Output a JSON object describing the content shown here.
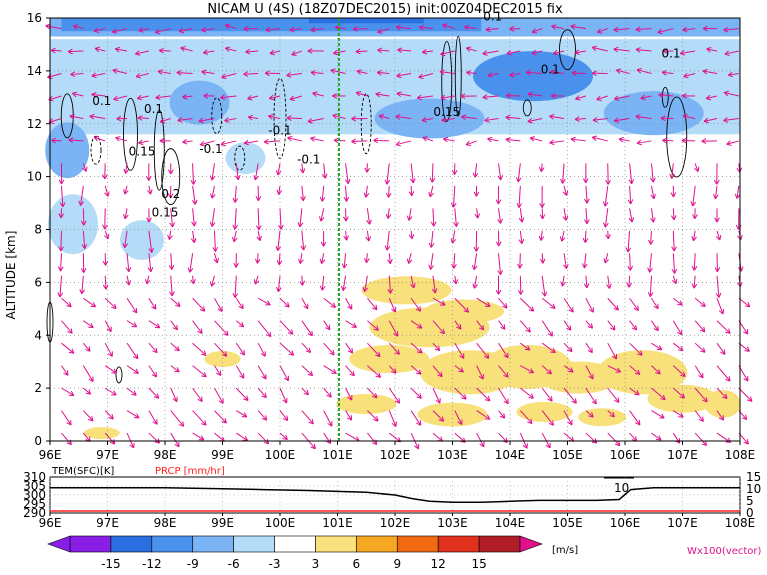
{
  "title": "NICAM U (4S) (18Z07DEC2015) init:00Z04DEC2015 fix",
  "colors": {
    "vector": "#e0108c",
    "shade_neg": [
      "#8a1ee6",
      "#2a6fe0",
      "#4a91ee",
      "#7ab4f5",
      "#b4dcf8"
    ],
    "shade_pos": [
      "#f8e07a",
      "#f5a623",
      "#f06a14",
      "#e0301e",
      "#b01e28"
    ],
    "green_line": "#22aa22",
    "precip": "#ff2020"
  },
  "chart_data": [
    {
      "type": "heatmap",
      "title": "NICAM U (4S) (18Z07DEC2015) init:00Z04DEC2015 fix",
      "xlabel": "",
      "ylabel": "ALTITUDE [km]",
      "xlim": [
        96,
        108
      ],
      "ylim": [
        0,
        16
      ],
      "x_ticks": [
        "96E",
        "97E",
        "98E",
        "99E",
        "100E",
        "101E",
        "102E",
        "103E",
        "104E",
        "105E",
        "106E",
        "107E",
        "108E"
      ],
      "y_ticks": [
        "0",
        "2",
        "4",
        "6",
        "8",
        "10",
        "12",
        "14",
        "16"
      ],
      "grid": true,
      "contour_labels": [
        {
          "text": "0.1",
          "x": 103.7,
          "y": 15.9
        },
        {
          "text": "0.1",
          "x": 96.9,
          "y": 12.7
        },
        {
          "text": "0.1",
          "x": 97.8,
          "y": 12.4
        },
        {
          "text": "0.15",
          "x": 97.6,
          "y": 10.8
        },
        {
          "text": "-0.1",
          "x": 98.8,
          "y": 10.9
        },
        {
          "text": "-0.1",
          "x": 100.0,
          "y": 11.6
        },
        {
          "text": "-0.1",
          "x": 100.5,
          "y": 10.5
        },
        {
          "text": "0.2",
          "x": 98.1,
          "y": 9.2
        },
        {
          "text": "0.15",
          "x": 98.0,
          "y": 8.5
        },
        {
          "text": "0.15",
          "x": 102.9,
          "y": 12.3
        },
        {
          "text": "0.1",
          "x": 104.7,
          "y": 13.9
        },
        {
          "text": "0.1",
          "x": 106.8,
          "y": 14.5
        }
      ],
      "shading_regions_u": [
        {
          "sign": "negative",
          "level": -12,
          "x": [
            96.2,
            103.5
          ],
          "y": [
            15.2,
            16
          ]
        },
        {
          "sign": "negative",
          "level": -6,
          "x": [
            96,
            108
          ],
          "y": [
            11.5,
            15.2
          ]
        },
        {
          "sign": "negative",
          "level": -3,
          "x": [
            96,
            100
          ],
          "y": [
            7.5,
            11.5
          ]
        },
        {
          "sign": "positive",
          "level": 3,
          "x": [
            100.8,
            108
          ],
          "y": [
            0.5,
            6.5
          ]
        }
      ]
    },
    {
      "type": "line",
      "title": "TEM(SFC)[K]",
      "secondary_title": "PRCP [mm/hr]",
      "xlim": [
        96,
        108
      ],
      "ylim": [
        290,
        310
      ],
      "y2lim": [
        0,
        15
      ],
      "y_ticks": [
        "290",
        "295",
        "300",
        "305",
        "310"
      ],
      "y2_ticks": [
        "0",
        "5",
        "10",
        "15"
      ],
      "x_ticks": [
        "96E",
        "97E",
        "98E",
        "99E",
        "100E",
        "101E",
        "102E",
        "103E",
        "104E",
        "105E",
        "106E",
        "107E",
        "108E"
      ],
      "annotation": "10",
      "series": [
        {
          "x": [
            96,
            97,
            98,
            99,
            99.7,
            100.5,
            101,
            101.5,
            102,
            102.3,
            102.6,
            103,
            103.5,
            104,
            104.5,
            105,
            105.5,
            105.9,
            106.1,
            106.5,
            107,
            108
          ],
          "values": [
            304,
            304,
            304,
            303.5,
            303,
            302.5,
            302,
            301.5,
            300,
            298,
            296.5,
            296,
            296,
            296.5,
            297,
            297,
            297,
            297.5,
            303,
            304,
            304,
            304
          ]
        }
      ]
    }
  ],
  "colorbar": {
    "ticks": [
      "-15",
      "-12",
      "-9",
      "-6",
      "-3",
      "3",
      "6",
      "9",
      "12",
      "15"
    ],
    "unit": "[m/s]",
    "vector_note": "Wx100(vector)"
  }
}
